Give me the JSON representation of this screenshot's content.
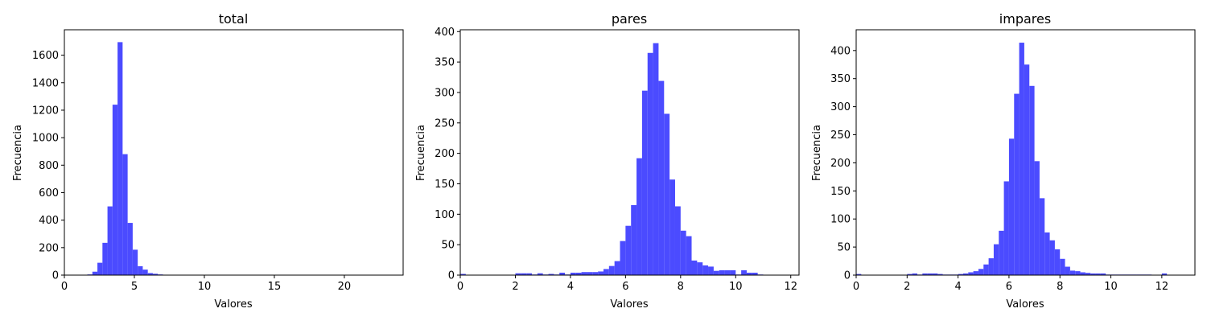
{
  "chart_data": [
    {
      "type": "histogram",
      "title": "total",
      "xlabel": "Valores",
      "ylabel": "Frecuencia",
      "xlim": [
        0,
        24.2
      ],
      "ylim": [
        0,
        1785
      ],
      "xticks": [
        0,
        5,
        10,
        15,
        20
      ],
      "yticks": [
        0,
        200,
        400,
        600,
        800,
        1000,
        1200,
        1400,
        1600
      ],
      "color": "#4b4bff",
      "grid": false,
      "bin_width": 0.36,
      "bins": [
        [
          1.64,
          5
        ],
        [
          2.0,
          25
        ],
        [
          2.36,
          90
        ],
        [
          2.72,
          235
        ],
        [
          3.08,
          500
        ],
        [
          3.44,
          1240
        ],
        [
          3.8,
          1695
        ],
        [
          4.16,
          880
        ],
        [
          4.52,
          380
        ],
        [
          4.88,
          185
        ],
        [
          5.24,
          65
        ],
        [
          5.6,
          40
        ],
        [
          5.96,
          15
        ],
        [
          6.32,
          10
        ],
        [
          6.68,
          5
        ],
        [
          7.04,
          3
        ],
        [
          7.4,
          2
        ],
        [
          7.76,
          2
        ],
        [
          8.12,
          1
        ],
        [
          8.48,
          1
        ],
        [
          8.84,
          1
        ]
      ]
    },
    {
      "type": "histogram",
      "title": "pares",
      "xlabel": "Valores",
      "ylabel": "Frecuencia",
      "xlim": [
        0,
        12.3
      ],
      "ylim": [
        0,
        403
      ],
      "xticks": [
        0,
        2,
        4,
        6,
        8,
        10,
        12
      ],
      "yticks": [
        0,
        50,
        100,
        150,
        200,
        250,
        300,
        350,
        400
      ],
      "color": "#4b4bff",
      "grid": false,
      "bin_width": 0.2,
      "bins": [
        [
          0,
          2
        ],
        [
          2.0,
          3
        ],
        [
          2.2,
          3
        ],
        [
          2.4,
          3
        ],
        [
          2.6,
          1
        ],
        [
          2.8,
          3
        ],
        [
          3.0,
          1
        ],
        [
          3.2,
          2
        ],
        [
          3.4,
          1
        ],
        [
          3.6,
          4
        ],
        [
          3.8,
          1
        ],
        [
          4.0,
          4
        ],
        [
          4.2,
          4
        ],
        [
          4.4,
          5
        ],
        [
          4.6,
          5
        ],
        [
          4.8,
          5
        ],
        [
          5.0,
          6
        ],
        [
          5.2,
          10
        ],
        [
          5.4,
          15
        ],
        [
          5.6,
          23
        ],
        [
          5.8,
          56
        ],
        [
          6.0,
          81
        ],
        [
          6.2,
          115
        ],
        [
          6.4,
          192
        ],
        [
          6.6,
          303
        ],
        [
          6.8,
          365
        ],
        [
          7.0,
          381
        ],
        [
          7.2,
          319
        ],
        [
          7.4,
          265
        ],
        [
          7.6,
          157
        ],
        [
          7.8,
          113
        ],
        [
          8.0,
          73
        ],
        [
          8.2,
          64
        ],
        [
          8.4,
          24
        ],
        [
          8.6,
          21
        ],
        [
          8.8,
          16
        ],
        [
          9.0,
          14
        ],
        [
          9.2,
          7
        ],
        [
          9.4,
          8
        ],
        [
          9.6,
          8
        ],
        [
          9.8,
          8
        ],
        [
          10.0,
          1
        ],
        [
          10.2,
          8
        ],
        [
          10.4,
          4
        ],
        [
          10.6,
          4
        ],
        [
          10.8,
          1
        ]
      ]
    },
    {
      "type": "histogram",
      "title": "impares",
      "xlabel": "Valores",
      "ylabel": "Frecuencia",
      "xlim": [
        0,
        13.3
      ],
      "ylim": [
        0,
        437
      ],
      "xticks": [
        0,
        2,
        4,
        6,
        8,
        10,
        12
      ],
      "yticks": [
        0,
        50,
        100,
        150,
        200,
        250,
        300,
        350,
        400
      ],
      "color": "#4b4bff",
      "grid": false,
      "bin_width": 0.2,
      "bins": [
        [
          0,
          2
        ],
        [
          2.0,
          2
        ],
        [
          2.2,
          3
        ],
        [
          2.4,
          1
        ],
        [
          2.6,
          3
        ],
        [
          2.8,
          3
        ],
        [
          3.0,
          3
        ],
        [
          3.2,
          2
        ],
        [
          3.4,
          1
        ],
        [
          3.6,
          1
        ],
        [
          3.8,
          1
        ],
        [
          4.0,
          2
        ],
        [
          4.2,
          3
        ],
        [
          4.4,
          5
        ],
        [
          4.6,
          7
        ],
        [
          4.8,
          11
        ],
        [
          5.0,
          19
        ],
        [
          5.2,
          30
        ],
        [
          5.4,
          55
        ],
        [
          5.6,
          79
        ],
        [
          5.8,
          167
        ],
        [
          6.0,
          243
        ],
        [
          6.2,
          323
        ],
        [
          6.4,
          414
        ],
        [
          6.6,
          375
        ],
        [
          6.8,
          337
        ],
        [
          7.0,
          203
        ],
        [
          7.2,
          137
        ],
        [
          7.4,
          76
        ],
        [
          7.6,
          62
        ],
        [
          7.8,
          46
        ],
        [
          8.0,
          29
        ],
        [
          8.2,
          15
        ],
        [
          8.4,
          8
        ],
        [
          8.6,
          7
        ],
        [
          8.8,
          5
        ],
        [
          9.0,
          4
        ],
        [
          9.2,
          3
        ],
        [
          9.4,
          3
        ],
        [
          9.6,
          3
        ],
        [
          9.8,
          1
        ],
        [
          10.0,
          1
        ],
        [
          10.2,
          1
        ],
        [
          10.4,
          1
        ],
        [
          10.6,
          1
        ],
        [
          10.8,
          1
        ],
        [
          11.0,
          1
        ],
        [
          11.2,
          1
        ],
        [
          11.4,
          1
        ],
        [
          12.0,
          3
        ]
      ]
    }
  ]
}
